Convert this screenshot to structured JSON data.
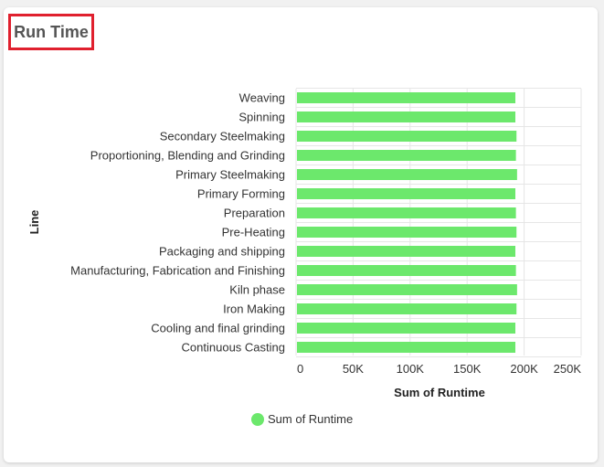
{
  "card": {
    "title": "Run Time"
  },
  "chart_data": {
    "type": "bar",
    "orientation": "horizontal",
    "title": "Run Time",
    "xlabel": "Sum of Runtime",
    "ylabel": "Line",
    "xlim": [
      0,
      250000
    ],
    "x_ticks": [
      {
        "value": 0,
        "label": "0"
      },
      {
        "value": 50000,
        "label": "50K"
      },
      {
        "value": 100000,
        "label": "100K"
      },
      {
        "value": 150000,
        "label": "150K"
      },
      {
        "value": 200000,
        "label": "200K"
      },
      {
        "value": 250000,
        "label": "250K"
      }
    ],
    "categories": [
      "Weaving",
      "Spinning",
      "Secondary Steelmaking",
      "Proportioning, Blending and Grinding",
      "Primary Steelmaking",
      "Primary Forming",
      "Preparation",
      "Pre-Heating",
      "Packaging and shipping",
      "Manufacturing, Fabrication and Finishing",
      "Kiln phase",
      "Iron Making",
      "Cooling and final grinding",
      "Continuous Casting"
    ],
    "series": [
      {
        "name": "Sum of Runtime",
        "color": "#6ce86c",
        "values": [
          191500,
          191500,
          192500,
          192000,
          193000,
          191500,
          192000,
          192500,
          191500,
          192000,
          193000,
          192500,
          191500,
          191500
        ]
      }
    ],
    "grid": true,
    "legend_position": "bottom"
  }
}
